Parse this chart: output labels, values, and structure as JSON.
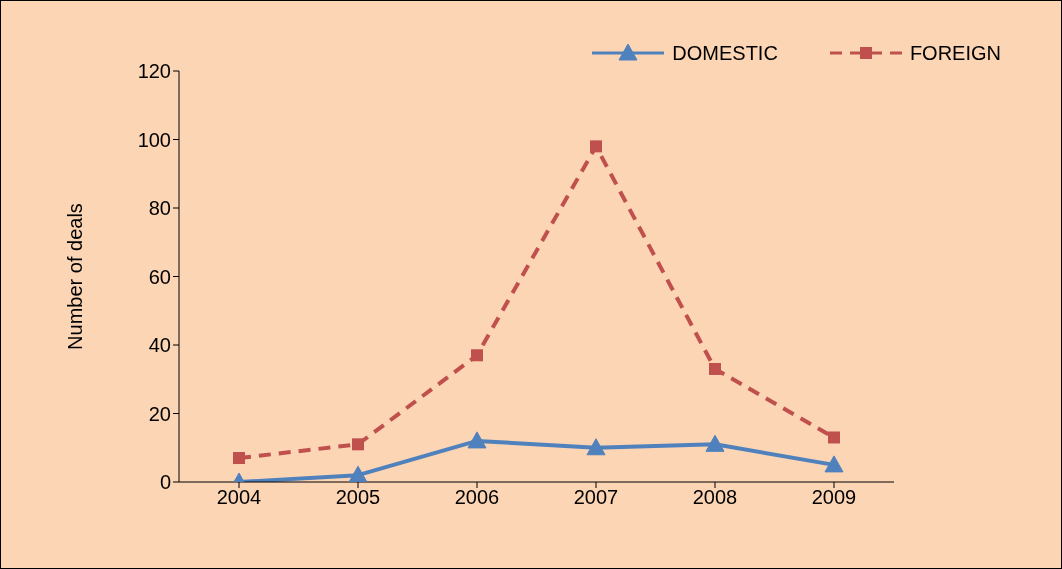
{
  "chart_data": {
    "type": "line",
    "ylabel": "Number of deals",
    "categories": [
      "2004",
      "2005",
      "2006",
      "2007",
      "2008",
      "2009"
    ],
    "series": [
      {
        "name": "DOMESTIC",
        "color": "#4f81bd",
        "values": [
          0,
          2,
          12,
          10,
          11,
          5
        ],
        "marker": "triangle",
        "line_style": "solid"
      },
      {
        "name": "FOREIGN",
        "color": "#c0504d",
        "values": [
          7,
          11,
          37,
          98,
          33,
          13
        ],
        "marker": "square",
        "line_style": "dashed"
      }
    ],
    "ylim": [
      0,
      120
    ],
    "yticks": [
      0,
      20,
      40,
      60,
      80,
      100,
      120
    ],
    "grid": false,
    "legend": "top right"
  }
}
